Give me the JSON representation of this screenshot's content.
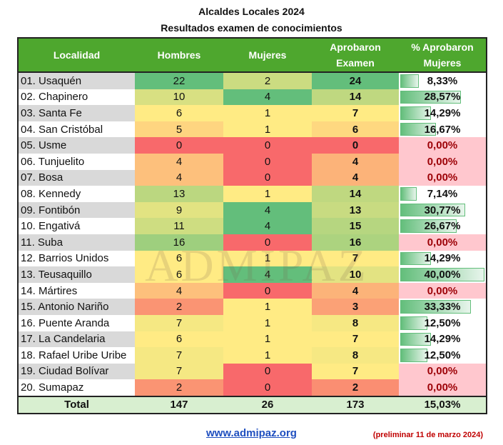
{
  "title": "Alcaldes Locales 2024",
  "subtitle": "Resultados examen de conocimientos",
  "headers": [
    "Localidad",
    "Hombres",
    "Mujeres",
    "Aprobaron Examen",
    "% Aprobaron Mujeres"
  ],
  "rows": [
    {
      "localidad": "01. Usaquén",
      "hombres": 22,
      "mujeres": 2,
      "aprobaron": 24,
      "pct": "8,33%",
      "pct_value": 8.33
    },
    {
      "localidad": "02. Chapinero",
      "hombres": 10,
      "mujeres": 4,
      "aprobaron": 14,
      "pct": "28,57%",
      "pct_value": 28.57
    },
    {
      "localidad": "03. Santa Fe",
      "hombres": 6,
      "mujeres": 1,
      "aprobaron": 7,
      "pct": "14,29%",
      "pct_value": 14.29
    },
    {
      "localidad": "04. San Cristóbal",
      "hombres": 5,
      "mujeres": 1,
      "aprobaron": 6,
      "pct": "16,67%",
      "pct_value": 16.67
    },
    {
      "localidad": "05. Usme",
      "hombres": 0,
      "mujeres": 0,
      "aprobaron": 0,
      "pct": "0,00%",
      "pct_value": 0
    },
    {
      "localidad": "06. Tunjuelito",
      "hombres": 4,
      "mujeres": 0,
      "aprobaron": 4,
      "pct": "0,00%",
      "pct_value": 0
    },
    {
      "localidad": "07. Bosa",
      "hombres": 4,
      "mujeres": 0,
      "aprobaron": 4,
      "pct": "0,00%",
      "pct_value": 0
    },
    {
      "localidad": "08. Kennedy",
      "hombres": 13,
      "mujeres": 1,
      "aprobaron": 14,
      "pct": "7,14%",
      "pct_value": 7.14
    },
    {
      "localidad": "09. Fontibón",
      "hombres": 9,
      "mujeres": 4,
      "aprobaron": 13,
      "pct": "30,77%",
      "pct_value": 30.77
    },
    {
      "localidad": "10. Engativá",
      "hombres": 11,
      "mujeres": 4,
      "aprobaron": 15,
      "pct": "26,67%",
      "pct_value": 26.67
    },
    {
      "localidad": "11. Suba",
      "hombres": 16,
      "mujeres": 0,
      "aprobaron": 16,
      "pct": "0,00%",
      "pct_value": 0
    },
    {
      "localidad": "12. Barrios Unidos",
      "hombres": 6,
      "mujeres": 1,
      "aprobaron": 7,
      "pct": "14,29%",
      "pct_value": 14.29
    },
    {
      "localidad": "13. Teusaquillo",
      "hombres": 6,
      "mujeres": 4,
      "aprobaron": 10,
      "pct": "40,00%",
      "pct_value": 40
    },
    {
      "localidad": "14. Mártires",
      "hombres": 4,
      "mujeres": 0,
      "aprobaron": 4,
      "pct": "0,00%",
      "pct_value": 0
    },
    {
      "localidad": "15. Antonio Nariño",
      "hombres": 2,
      "mujeres": 1,
      "aprobaron": 3,
      "pct": "33,33%",
      "pct_value": 33.33
    },
    {
      "localidad": "16. Puente Aranda",
      "hombres": 7,
      "mujeres": 1,
      "aprobaron": 8,
      "pct": "12,50%",
      "pct_value": 12.5
    },
    {
      "localidad": "17. La Candelaria",
      "hombres": 6,
      "mujeres": 1,
      "aprobaron": 7,
      "pct": "14,29%",
      "pct_value": 14.29
    },
    {
      "localidad": "18. Rafael Uribe Uribe",
      "hombres": 7,
      "mujeres": 1,
      "aprobaron": 8,
      "pct": "12,50%",
      "pct_value": 12.5
    },
    {
      "localidad": "19. Ciudad Bolívar",
      "hombres": 7,
      "mujeres": 0,
      "aprobaron": 7,
      "pct": "0,00%",
      "pct_value": 0
    },
    {
      "localidad": "20. Sumapaz",
      "hombres": 2,
      "mujeres": 0,
      "aprobaron": 2,
      "pct": "0,00%",
      "pct_value": 0
    }
  ],
  "total": {
    "label": "Total",
    "hombres": 147,
    "mujeres": 26,
    "aprobaron": 173,
    "pct": "15,03%"
  },
  "link": "www.admipaz.org",
  "note": "(preliminar 11 de marzo 2024)",
  "watermark": "ADMIPAZ",
  "colors": {
    "header": "#4ea72e",
    "low": "#f8696b",
    "mid": "#ffeb84",
    "high": "#63be7b",
    "zero_bg": "#ffc7ce",
    "zero_text": "#9c0006"
  }
}
